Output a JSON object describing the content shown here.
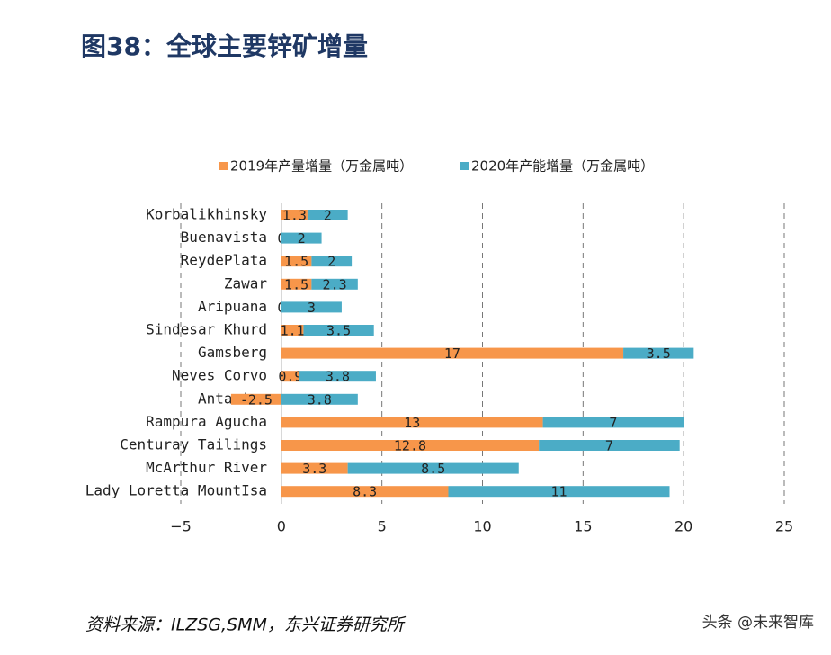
{
  "chart_data": {
    "type": "stacked-bar-horizontal",
    "title": "图38：全球主要锌矿增量",
    "categories": [
      "Korbalikhinsky",
      "Buenavista",
      "ReydePlata",
      "Zawar",
      "Aripuana",
      "Sindesar Khurd",
      "Gamsberg",
      "Neves Corvo",
      "Antamina",
      "Rampura Agucha",
      "Centuray Tailings",
      "McArthur River",
      "Lady Loretta MountIsa"
    ],
    "series": [
      {
        "name": "2019年产量增量（万金属吨）",
        "color": "#f7964a",
        "values": [
          1.3,
          0,
          1.5,
          1.5,
          0,
          1.1,
          17,
          0.9,
          -2.5,
          13,
          12.8,
          3.3,
          8.3
        ]
      },
      {
        "name": "2020年产能增量（万金属吨）",
        "color": "#4bacc6",
        "values": [
          2,
          2,
          2,
          2.3,
          3,
          3.5,
          3.5,
          3.8,
          3.8,
          7,
          7,
          8.5,
          11
        ]
      }
    ],
    "xlim": [
      -5,
      25
    ],
    "xticks": [
      {
        "value": -5,
        "label": "−5"
      },
      0,
      5,
      10,
      15,
      20,
      25
    ],
    "grid": true,
    "legend": "top",
    "source": "资料来源：ILZSG,SMM，东兴证券研究所",
    "watermark": "头条 @未来智库"
  }
}
